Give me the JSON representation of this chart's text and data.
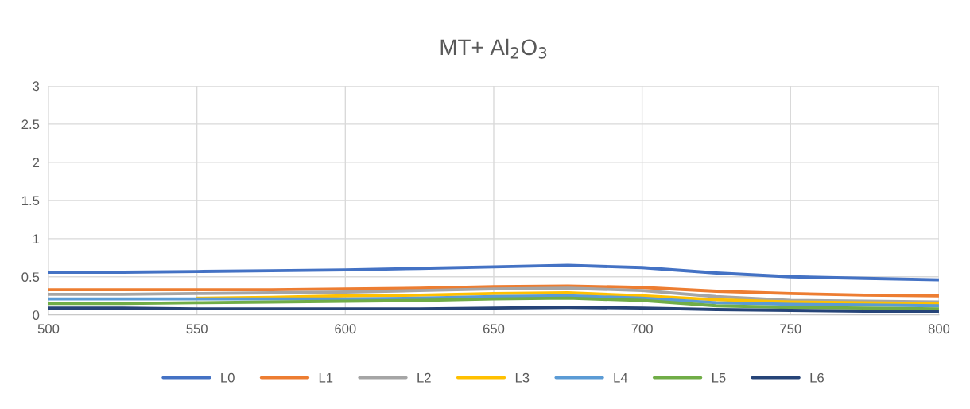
{
  "chart_data": {
    "type": "line",
    "title": "MT+ Al$_{2}$O$_{3}$",
    "x": [
      500,
      525,
      550,
      575,
      600,
      625,
      650,
      675,
      700,
      725,
      750,
      775,
      800
    ],
    "series": [
      {
        "name": "L0",
        "color": "#4472c4",
        "values": [
          0.56,
          0.56,
          0.57,
          0.58,
          0.59,
          0.61,
          0.63,
          0.65,
          0.62,
          0.55,
          0.5,
          0.48,
          0.46
        ]
      },
      {
        "name": "L1",
        "color": "#ed7d31",
        "values": [
          0.33,
          0.33,
          0.33,
          0.33,
          0.34,
          0.35,
          0.37,
          0.38,
          0.36,
          0.31,
          0.28,
          0.26,
          0.25
        ]
      },
      {
        "name": "L2",
        "color": "#a5a5a5",
        "values": [
          0.27,
          0.27,
          0.28,
          0.29,
          0.3,
          0.32,
          0.34,
          0.35,
          0.32,
          0.24,
          0.19,
          0.18,
          0.17
        ]
      },
      {
        "name": "L3",
        "color": "#ffc000",
        "values": [
          null,
          null,
          0.22,
          0.23,
          0.25,
          0.26,
          0.28,
          0.29,
          0.25,
          0.2,
          0.17,
          0.16,
          0.15
        ]
      },
      {
        "name": "L4",
        "color": "#5b9bd5",
        "values": [
          0.21,
          0.21,
          0.21,
          0.21,
          0.21,
          0.22,
          0.24,
          0.25,
          0.22,
          0.16,
          0.14,
          0.13,
          0.12
        ]
      },
      {
        "name": "L5",
        "color": "#70ad47",
        "values": [
          0.15,
          0.15,
          0.16,
          0.17,
          0.18,
          0.19,
          0.21,
          0.22,
          0.19,
          0.12,
          0.1,
          0.09,
          0.08
        ]
      },
      {
        "name": "L6",
        "color": "#264478",
        "values": [
          0.09,
          0.09,
          0.08,
          0.08,
          0.08,
          0.08,
          0.09,
          0.1,
          0.09,
          0.07,
          0.06,
          0.05,
          0.05
        ]
      }
    ],
    "xlim": [
      500,
      800
    ],
    "xticks": [
      500,
      550,
      600,
      650,
      700,
      750,
      800
    ],
    "ylim": [
      0,
      3
    ],
    "yticks": [
      0,
      0.5,
      1,
      1.5,
      2,
      2.5,
      3
    ],
    "grid": true,
    "legend": "bottom",
    "marker": "none",
    "line_style": "solid"
  }
}
